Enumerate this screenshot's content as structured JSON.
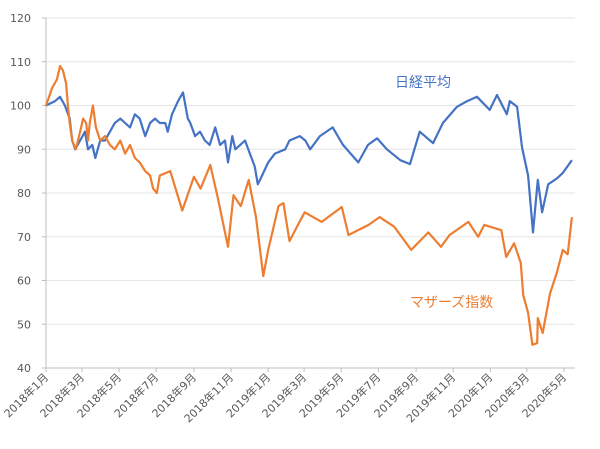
{
  "chart_data": {
    "type": "line",
    "title": "",
    "xlabel": "",
    "ylabel": "",
    "ylim": [
      40,
      120
    ],
    "yticks": [
      "40",
      "50",
      "60",
      "70",
      "80",
      "90",
      "100",
      "110",
      "120"
    ],
    "grid": true,
    "legend": "inline labels",
    "xtick_labels": [
      {
        "date": "2018-01-01",
        "label": "2018年1月"
      },
      {
        "date": "2018-03-01",
        "label": "2018年3月"
      },
      {
        "date": "2018-05-01",
        "label": "2018年5月"
      },
      {
        "date": "2018-07-01",
        "label": "2018年7月"
      },
      {
        "date": "2018-09-01",
        "label": "2018年9月"
      },
      {
        "date": "2018-11-01",
        "label": "2018年11月"
      },
      {
        "date": "2019-01-01",
        "label": "2019年1月"
      },
      {
        "date": "2019-03-01",
        "label": "2019年3月"
      },
      {
        "date": "2019-05-01",
        "label": "2019年5月"
      },
      {
        "date": "2019-07-01",
        "label": "2019年7月"
      },
      {
        "date": "2019-09-01",
        "label": "2019年9月"
      },
      {
        "date": "2019-11-01",
        "label": "2019年11月"
      },
      {
        "date": "2020-01-01",
        "label": "2020年1月"
      },
      {
        "date": "2020-03-01",
        "label": "2020年3月"
      },
      {
        "date": "2020-05-01",
        "label": "2020年5月"
      }
    ],
    "series": [
      {
        "name": "日経平均",
        "color": "#4472C4",
        "points": [
          [
            "2018-01-01",
            100
          ],
          [
            "2018-01-16",
            101
          ],
          [
            "2018-01-24",
            102
          ],
          [
            "2018-02-01",
            100
          ],
          [
            "2018-02-09",
            97
          ],
          [
            "2018-02-13",
            92
          ],
          [
            "2018-02-18",
            90
          ],
          [
            "2018-02-26",
            92
          ],
          [
            "2018-03-06",
            94
          ],
          [
            "2018-03-11",
            90
          ],
          [
            "2018-03-18",
            91
          ],
          [
            "2018-03-23",
            88
          ],
          [
            "2018-03-31",
            92
          ],
          [
            "2018-04-08",
            92
          ],
          [
            "2018-04-16",
            94
          ],
          [
            "2018-04-24",
            96
          ],
          [
            "2018-05-03",
            97
          ],
          [
            "2018-05-11",
            96
          ],
          [
            "2018-05-19",
            95
          ],
          [
            "2018-05-27",
            98
          ],
          [
            "2018-06-04",
            97
          ],
          [
            "2018-06-13",
            93
          ],
          [
            "2018-06-21",
            96
          ],
          [
            "2018-06-29",
            97
          ],
          [
            "2018-07-07",
            96
          ],
          [
            "2018-07-16",
            96
          ],
          [
            "2018-07-20",
            94
          ],
          [
            "2018-07-27",
            98
          ],
          [
            "2018-08-06",
            101
          ],
          [
            "2018-08-14",
            103
          ],
          [
            "2018-08-22",
            97
          ],
          [
            "2018-08-26",
            96
          ],
          [
            "2018-09-03",
            93
          ],
          [
            "2018-09-11",
            94
          ],
          [
            "2018-09-19",
            92
          ],
          [
            "2018-09-27",
            91
          ],
          [
            "2018-10-06",
            95
          ],
          [
            "2018-10-14",
            91
          ],
          [
            "2018-10-22",
            92
          ],
          [
            "2018-10-27",
            87
          ],
          [
            "2018-11-03",
            93
          ],
          [
            "2018-11-08",
            90
          ],
          [
            "2018-11-16",
            91
          ],
          [
            "2018-11-24",
            92
          ],
          [
            "2018-12-02",
            89
          ],
          [
            "2018-12-10",
            86
          ],
          [
            "2018-12-15",
            82
          ],
          [
            "2018-12-22",
            84
          ],
          [
            "2019-01-01",
            87
          ],
          [
            "2019-01-12",
            89
          ],
          [
            "2019-01-29",
            90
          ],
          [
            "2019-02-05",
            92
          ],
          [
            "2019-02-22",
            93
          ],
          [
            "2019-03-03",
            92
          ],
          [
            "2019-03-11",
            90
          ],
          [
            "2019-03-27",
            93
          ],
          [
            "2019-04-17",
            95
          ],
          [
            "2019-05-04",
            91
          ],
          [
            "2019-05-29",
            87
          ],
          [
            "2019-06-14",
            91
          ],
          [
            "2019-06-29",
            92.5
          ],
          [
            "2019-07-15",
            90
          ],
          [
            "2019-08-06",
            87.5
          ],
          [
            "2019-08-22",
            86.6
          ],
          [
            "2019-09-07",
            94
          ],
          [
            "2019-09-29",
            91.4
          ],
          [
            "2019-10-15",
            96
          ],
          [
            "2019-11-07",
            99.7
          ],
          [
            "2019-11-24",
            101
          ],
          [
            "2019-12-10",
            102
          ],
          [
            "2019-12-31",
            99
          ],
          [
            "2020-01-12",
            102.4
          ],
          [
            "2020-01-28",
            98
          ],
          [
            "2020-02-02",
            101
          ],
          [
            "2020-02-14",
            99.7
          ],
          [
            "2020-02-22",
            90.5
          ],
          [
            "2020-03-03",
            84
          ],
          [
            "2020-03-11",
            71
          ],
          [
            "2020-03-19",
            83
          ],
          [
            "2020-03-26",
            75.6
          ],
          [
            "2020-04-05",
            82
          ],
          [
            "2020-04-20",
            83.4
          ],
          [
            "2020-04-29",
            84.6
          ],
          [
            "2020-05-14",
            87.5
          ]
        ]
      },
      {
        "name": "マザーズ指数",
        "color": "#ED7D31",
        "points": [
          [
            "2018-01-01",
            100
          ],
          [
            "2018-01-11",
            104
          ],
          [
            "2018-01-19",
            106
          ],
          [
            "2018-01-24",
            109
          ],
          [
            "2018-01-29",
            108
          ],
          [
            "2018-02-03",
            105
          ],
          [
            "2018-02-06",
            100
          ],
          [
            "2018-02-09",
            96
          ],
          [
            "2018-02-13",
            92
          ],
          [
            "2018-02-19",
            90
          ],
          [
            "2018-02-26",
            94
          ],
          [
            "2018-03-03",
            97
          ],
          [
            "2018-03-08",
            96
          ],
          [
            "2018-03-11",
            92
          ],
          [
            "2018-03-14",
            96
          ],
          [
            "2018-03-19",
            100
          ],
          [
            "2018-03-24",
            95
          ],
          [
            "2018-03-31",
            92
          ],
          [
            "2018-04-08",
            93
          ],
          [
            "2018-04-16",
            91
          ],
          [
            "2018-04-24",
            90
          ],
          [
            "2018-05-03",
            92
          ],
          [
            "2018-05-11",
            89
          ],
          [
            "2018-05-19",
            91
          ],
          [
            "2018-05-27",
            88
          ],
          [
            "2018-06-04",
            87
          ],
          [
            "2018-06-13",
            85
          ],
          [
            "2018-06-21",
            84
          ],
          [
            "2018-06-26",
            81
          ],
          [
            "2018-07-02",
            80
          ],
          [
            "2018-07-07",
            84
          ],
          [
            "2018-07-24",
            85
          ],
          [
            "2018-08-13",
            76
          ],
          [
            "2018-09-01",
            83.7
          ],
          [
            "2018-09-12",
            81
          ],
          [
            "2018-09-28",
            86.4
          ],
          [
            "2018-10-10",
            79
          ],
          [
            "2018-10-27",
            67.7
          ],
          [
            "2018-11-05",
            79.5
          ],
          [
            "2018-11-17",
            77
          ],
          [
            "2018-11-30",
            83
          ],
          [
            "2018-12-12",
            74.5
          ],
          [
            "2018-12-24",
            61
          ],
          [
            "2019-01-01",
            67
          ],
          [
            "2019-01-18",
            77
          ],
          [
            "2019-01-26",
            77.7
          ],
          [
            "2019-02-05",
            69
          ],
          [
            "2019-02-20",
            73
          ],
          [
            "2019-03-02",
            75.6
          ],
          [
            "2019-03-30",
            73.4
          ],
          [
            "2019-05-02",
            76.8
          ],
          [
            "2019-05-13",
            70.4
          ],
          [
            "2019-06-15",
            72.7
          ],
          [
            "2019-07-03",
            74.5
          ],
          [
            "2019-07-27",
            72.3
          ],
          [
            "2019-08-24",
            67
          ],
          [
            "2019-09-21",
            71
          ],
          [
            "2019-10-12",
            67.7
          ],
          [
            "2019-10-26",
            70.4
          ],
          [
            "2019-11-26",
            73.4
          ],
          [
            "2019-12-12",
            70
          ],
          [
            "2019-12-22",
            72.7
          ],
          [
            "2020-01-19",
            71.5
          ],
          [
            "2020-01-27",
            65.4
          ],
          [
            "2020-02-09",
            68.5
          ],
          [
            "2020-02-20",
            64
          ],
          [
            "2020-02-24",
            56.7
          ],
          [
            "2020-03-03",
            52.6
          ],
          [
            "2020-03-10",
            45.3
          ],
          [
            "2020-03-18",
            45.7
          ],
          [
            "2020-03-19",
            51.4
          ],
          [
            "2020-03-27",
            48
          ],
          [
            "2020-04-08",
            57
          ],
          [
            "2020-04-19",
            61.7
          ],
          [
            "2020-04-29",
            67
          ],
          [
            "2020-05-07",
            66
          ],
          [
            "2020-05-14",
            74.5
          ]
        ]
      }
    ]
  }
}
